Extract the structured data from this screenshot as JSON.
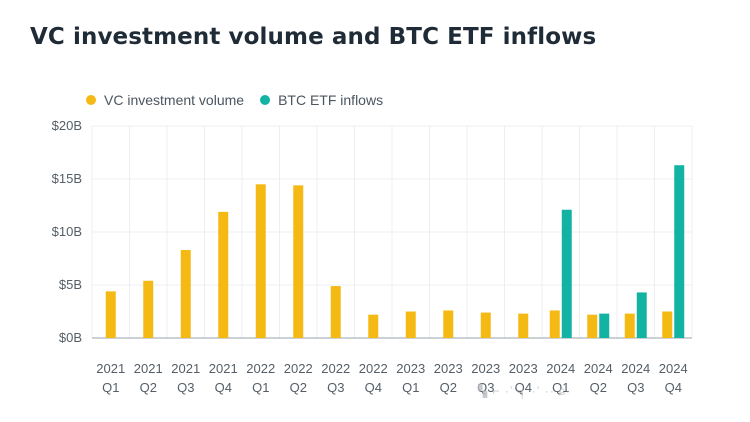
{
  "chart_data": {
    "type": "bar",
    "title": "VC investment volume and BTC ETF inflows",
    "categories": [
      [
        "2021",
        "Q1"
      ],
      [
        "2021",
        "Q2"
      ],
      [
        "2021",
        "Q3"
      ],
      [
        "2021",
        "Q4"
      ],
      [
        "2022",
        "Q1"
      ],
      [
        "2022",
        "Q2"
      ],
      [
        "2022",
        "Q3"
      ],
      [
        "2022",
        "Q4"
      ],
      [
        "2023",
        "Q1"
      ],
      [
        "2023",
        "Q2"
      ],
      [
        "2023",
        "Q3"
      ],
      [
        "2023",
        "Q4"
      ],
      [
        "2024",
        "Q1"
      ],
      [
        "2024",
        "Q2"
      ],
      [
        "2024",
        "Q3"
      ],
      [
        "2024",
        "Q4"
      ]
    ],
    "series": [
      {
        "name": "VC investment volume",
        "color": "#f5b914",
        "values": [
          4.4,
          5.4,
          8.3,
          11.9,
          14.5,
          14.4,
          4.9,
          2.2,
          2.5,
          2.6,
          2.4,
          2.3,
          2.6,
          2.2,
          2.3,
          2.5
        ]
      },
      {
        "name": "BTC ETF inflows",
        "color": "#13b3a3",
        "values": [
          null,
          null,
          null,
          null,
          null,
          null,
          null,
          null,
          null,
          null,
          null,
          null,
          12.1,
          2.3,
          4.3,
          16.3
        ]
      }
    ],
    "y_ticks": [
      "$0B",
      "$5B",
      "$10B",
      "$15B",
      "$20B"
    ],
    "y_tick_values": [
      0,
      5,
      10,
      15,
      20
    ],
    "ylim": [
      0,
      20
    ],
    "xlabel": "",
    "ylabel": "",
    "legend_position": "top-left",
    "grid": true
  }
}
